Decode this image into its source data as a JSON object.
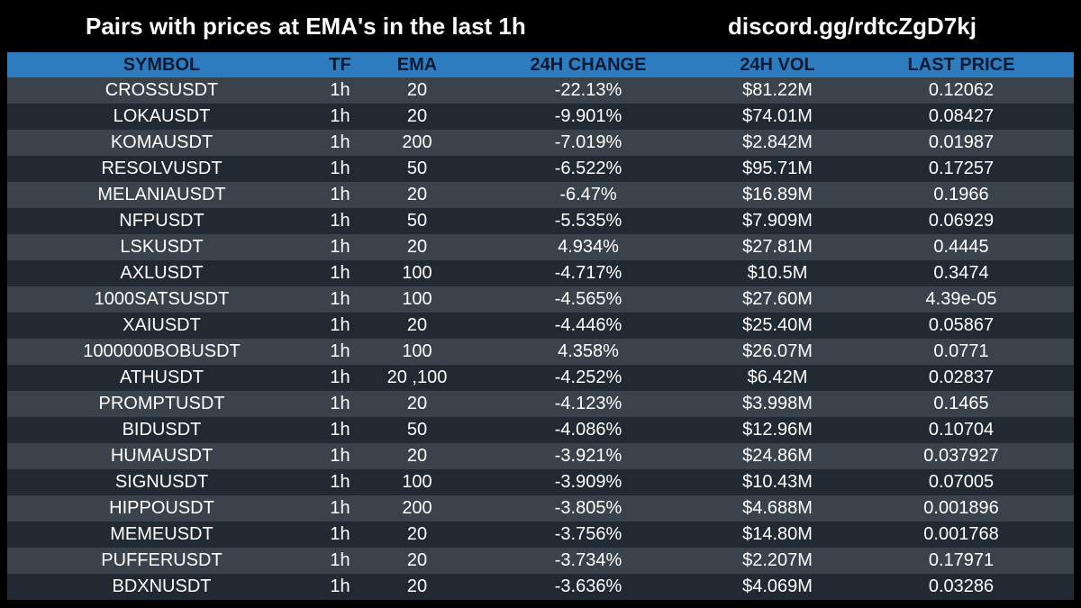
{
  "header": {
    "title": "Pairs with prices at EMA's in the last 1h",
    "link": "discord.gg/rdtcZgD7kj"
  },
  "colors": {
    "background": "#000000",
    "header_row": "#2e7cc0",
    "header_text": "#0a1a33",
    "row_dark": "#212a33",
    "row_light": "#3a424b",
    "text": "#ffffff"
  },
  "table": {
    "columns": [
      "SYMBOL",
      "TF",
      "EMA",
      "24H CHANGE",
      "24H VOL",
      "LAST PRICE"
    ],
    "rows": [
      [
        "CROSSUSDT",
        "1h",
        "20",
        "-22.13%",
        "$81.22M",
        "0.12062"
      ],
      [
        "LOKAUSDT",
        "1h",
        "20",
        "-9.901%",
        "$74.01M",
        "0.08427"
      ],
      [
        "KOMAUSDT",
        "1h",
        "200",
        "-7.019%",
        "$2.842M",
        "0.01987"
      ],
      [
        "RESOLVUSDT",
        "1h",
        "50",
        "-6.522%",
        "$95.71M",
        "0.17257"
      ],
      [
        "MELANIAUSDT",
        "1h",
        "20",
        "-6.47%",
        "$16.89M",
        "0.1966"
      ],
      [
        "NFPUSDT",
        "1h",
        "50",
        "-5.535%",
        "$7.909M",
        "0.06929"
      ],
      [
        "LSKUSDT",
        "1h",
        "20",
        "4.934%",
        "$27.81M",
        "0.4445"
      ],
      [
        "AXLUSDT",
        "1h",
        "100",
        "-4.717%",
        "$10.5M",
        "0.3474"
      ],
      [
        "1000SATSUSDT",
        "1h",
        "100",
        "-4.565%",
        "$27.60M",
        "4.39e-05"
      ],
      [
        "XAIUSDT",
        "1h",
        "20",
        "-4.446%",
        "$25.40M",
        "0.05867"
      ],
      [
        "1000000BOBUSDT",
        "1h",
        "100",
        "4.358%",
        "$26.07M",
        "0.0771"
      ],
      [
        "ATHUSDT",
        "1h",
        "20 ,100",
        "-4.252%",
        "$6.42M",
        "0.02837"
      ],
      [
        "PROMPTUSDT",
        "1h",
        "20",
        "-4.123%",
        "$3.998M",
        "0.1465"
      ],
      [
        "BIDUSDT",
        "1h",
        "50",
        "-4.086%",
        "$12.96M",
        "0.10704"
      ],
      [
        "HUMAUSDT",
        "1h",
        "20",
        "-3.921%",
        "$24.86M",
        "0.037927"
      ],
      [
        "SIGNUSDT",
        "1h",
        "100",
        "-3.909%",
        "$10.43M",
        "0.07005"
      ],
      [
        "HIPPOUSDT",
        "1h",
        "200",
        "-3.805%",
        "$4.688M",
        "0.001896"
      ],
      [
        "MEMEUSDT",
        "1h",
        "20",
        "-3.756%",
        "$14.80M",
        "0.001768"
      ],
      [
        "PUFFERUSDT",
        "1h",
        "20",
        "-3.734%",
        "$2.207M",
        "0.17971"
      ],
      [
        "BDXNUSDT",
        "1h",
        "20",
        "-3.636%",
        "$4.069M",
        "0.03286"
      ]
    ]
  }
}
